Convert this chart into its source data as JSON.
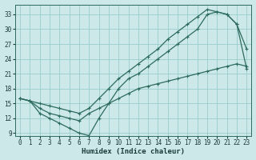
{
  "xlabel": "Humidex (Indice chaleur)",
  "background_color": "#cce8e8",
  "grid_color": "#99cccc",
  "line_color": "#2d6b5e",
  "xlim": [
    -0.5,
    23.5
  ],
  "ylim": [
    8.5,
    35
  ],
  "xticks": [
    0,
    1,
    2,
    3,
    4,
    5,
    6,
    7,
    8,
    9,
    10,
    11,
    12,
    13,
    14,
    15,
    16,
    17,
    18,
    19,
    20,
    21,
    22,
    23
  ],
  "yticks": [
    9,
    12,
    15,
    18,
    21,
    24,
    27,
    30,
    33
  ],
  "line1_x": [
    0,
    1,
    2,
    3,
    4,
    5,
    6,
    7,
    8,
    9,
    10,
    11,
    12,
    13,
    14,
    15,
    16,
    17,
    18,
    19,
    20,
    21,
    22,
    23
  ],
  "line1_y": [
    16,
    15.5,
    15,
    14.5,
    14,
    13.5,
    13,
    14,
    16,
    18,
    20,
    21.5,
    23,
    24.5,
    26,
    28,
    29.5,
    31,
    32.5,
    34,
    33.5,
    33,
    31,
    26
  ],
  "line2_x": [
    0,
    1,
    2,
    3,
    4,
    5,
    6,
    7,
    8,
    9,
    10,
    11,
    12,
    13,
    14,
    15,
    16,
    17,
    18,
    19,
    20,
    21,
    22,
    23
  ],
  "line2_y": [
    16,
    15.5,
    13,
    12,
    11,
    10,
    9,
    8.5,
    12,
    15,
    18,
    20,
    21,
    22.5,
    24,
    25.5,
    27,
    28.5,
    30,
    33,
    33.5,
    33,
    31,
    22
  ],
  "line3_x": [
    0,
    1,
    2,
    3,
    4,
    5,
    6,
    7,
    8,
    9,
    10,
    11,
    12,
    13,
    14,
    15,
    16,
    17,
    18,
    19,
    20,
    21,
    22,
    23
  ],
  "line3_y": [
    16,
    15.5,
    14,
    13,
    12.5,
    12,
    11.5,
    13,
    14,
    15,
    16,
    17,
    18,
    18.5,
    19,
    19.5,
    20,
    20.5,
    21,
    21.5,
    22,
    22.5,
    23,
    22.5
  ],
  "markersize": 3.5,
  "linewidth": 0.9
}
